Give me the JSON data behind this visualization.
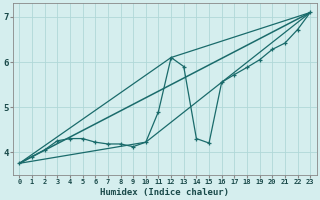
{
  "title": "",
  "xlabel": "Humidex (Indice chaleur)",
  "background_color": "#d5eeee",
  "grid_color": "#b0d8d8",
  "line_color": "#1a6b6b",
  "xlim": [
    -0.5,
    23.5
  ],
  "ylim": [
    3.5,
    7.3
  ],
  "yticks": [
    4,
    5,
    6,
    7
  ],
  "xticks": [
    0,
    1,
    2,
    3,
    4,
    5,
    6,
    7,
    8,
    9,
    10,
    11,
    12,
    13,
    14,
    15,
    16,
    17,
    18,
    19,
    20,
    21,
    22,
    23
  ],
  "line1_x": [
    0,
    1,
    2,
    3,
    4,
    5,
    6,
    7,
    8,
    9,
    10,
    11,
    12,
    13,
    14,
    15,
    16,
    17,
    18,
    19,
    20,
    21,
    22,
    23
  ],
  "line1_y": [
    3.75,
    3.9,
    4.05,
    4.25,
    4.3,
    4.3,
    4.22,
    4.18,
    4.18,
    4.12,
    4.22,
    4.9,
    6.1,
    5.9,
    4.3,
    4.2,
    5.55,
    5.72,
    5.88,
    6.05,
    6.28,
    6.42,
    6.72,
    7.1
  ],
  "line2_x": [
    0,
    23
  ],
  "line2_y": [
    3.75,
    7.1
  ],
  "line3_x": [
    0,
    12,
    23
  ],
  "line3_y": [
    3.75,
    6.1,
    7.1
  ],
  "line4_x": [
    0,
    10,
    16,
    23
  ],
  "line4_y": [
    3.75,
    4.22,
    5.55,
    7.1
  ]
}
